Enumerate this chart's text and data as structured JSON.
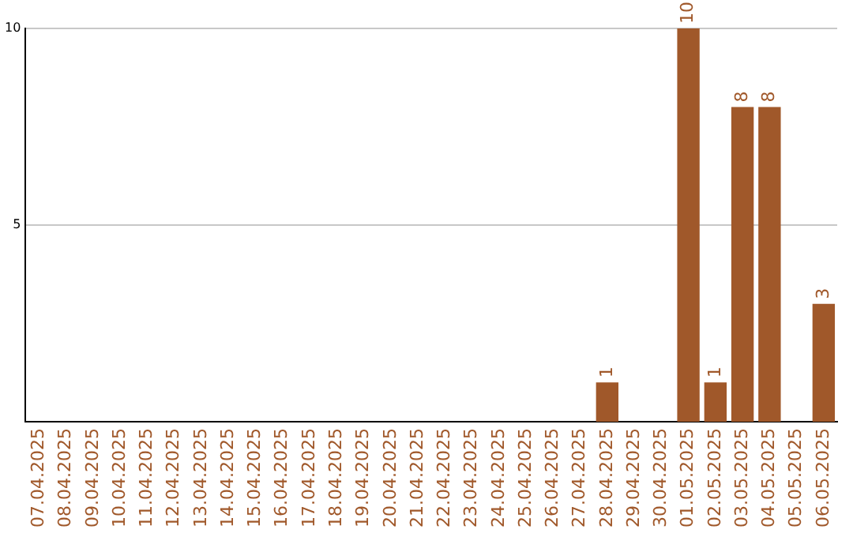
{
  "chart_data": {
    "type": "bar",
    "categories": [
      "07.04.2025",
      "08.04.2025",
      "09.04.2025",
      "10.04.2025",
      "11.04.2025",
      "12.04.2025",
      "13.04.2025",
      "14.04.2025",
      "15.04.2025",
      "16.04.2025",
      "17.04.2025",
      "18.04.2025",
      "19.04.2025",
      "20.04.2025",
      "21.04.2025",
      "22.04.2025",
      "23.04.2025",
      "24.04.2025",
      "25.04.2025",
      "26.04.2025",
      "27.04.2025",
      "28.04.2025",
      "29.04.2025",
      "30.04.2025",
      "01.05.2025",
      "02.05.2025",
      "03.05.2025",
      "04.05.2025",
      "05.05.2025",
      "06.05.2025"
    ],
    "values": [
      0,
      0,
      0,
      0,
      0,
      0,
      0,
      0,
      0,
      0,
      0,
      0,
      0,
      0,
      0,
      0,
      0,
      0,
      0,
      0,
      0,
      1,
      0,
      0,
      10,
      1,
      8,
      8,
      0,
      3
    ],
    "value_labels": [
      null,
      null,
      null,
      null,
      null,
      null,
      null,
      null,
      null,
      null,
      null,
      null,
      null,
      null,
      null,
      null,
      null,
      null,
      null,
      null,
      null,
      "1",
      null,
      null,
      "10",
      "1",
      "8",
      "8",
      null,
      "3"
    ],
    "color": "#a0582a",
    "ylim": [
      0,
      10
    ],
    "yticks": [
      5,
      10
    ],
    "grid": "y",
    "legend": false
  }
}
